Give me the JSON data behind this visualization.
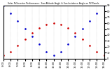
{
  "title": "Solar PV/Inverter Performance  Sun Altitude Angle & Sun Incidence Angle on PV Panels",
  "x_times": [
    "5:00",
    "6:00",
    "7:00",
    "8:00",
    "9:00",
    "10:00",
    "11:00",
    "12:00",
    "13:00",
    "14:00",
    "15:00",
    "16:00",
    "17:00",
    "18:00",
    "19:00"
  ],
  "x_values": [
    5,
    6,
    7,
    8,
    9,
    10,
    11,
    12,
    13,
    14,
    15,
    16,
    17,
    18,
    19
  ],
  "sun_altitude": [
    90,
    77,
    64,
    51,
    38,
    25,
    12,
    5,
    12,
    25,
    38,
    51,
    64,
    77,
    90
  ],
  "sun_incidence": [
    5,
    12,
    22,
    33,
    44,
    52,
    58,
    60,
    58,
    52,
    44,
    33,
    22,
    12,
    5
  ],
  "altitude_color": "#0000cc",
  "incidence_color": "#cc0000",
  "bg_color": "#ffffff",
  "grid_color": "#aaaaaa",
  "ylim": [
    0,
    90
  ],
  "xlim": [
    5,
    19
  ],
  "right_yticks": [
    0,
    10,
    20,
    30,
    40,
    50,
    60,
    70,
    80,
    90
  ]
}
